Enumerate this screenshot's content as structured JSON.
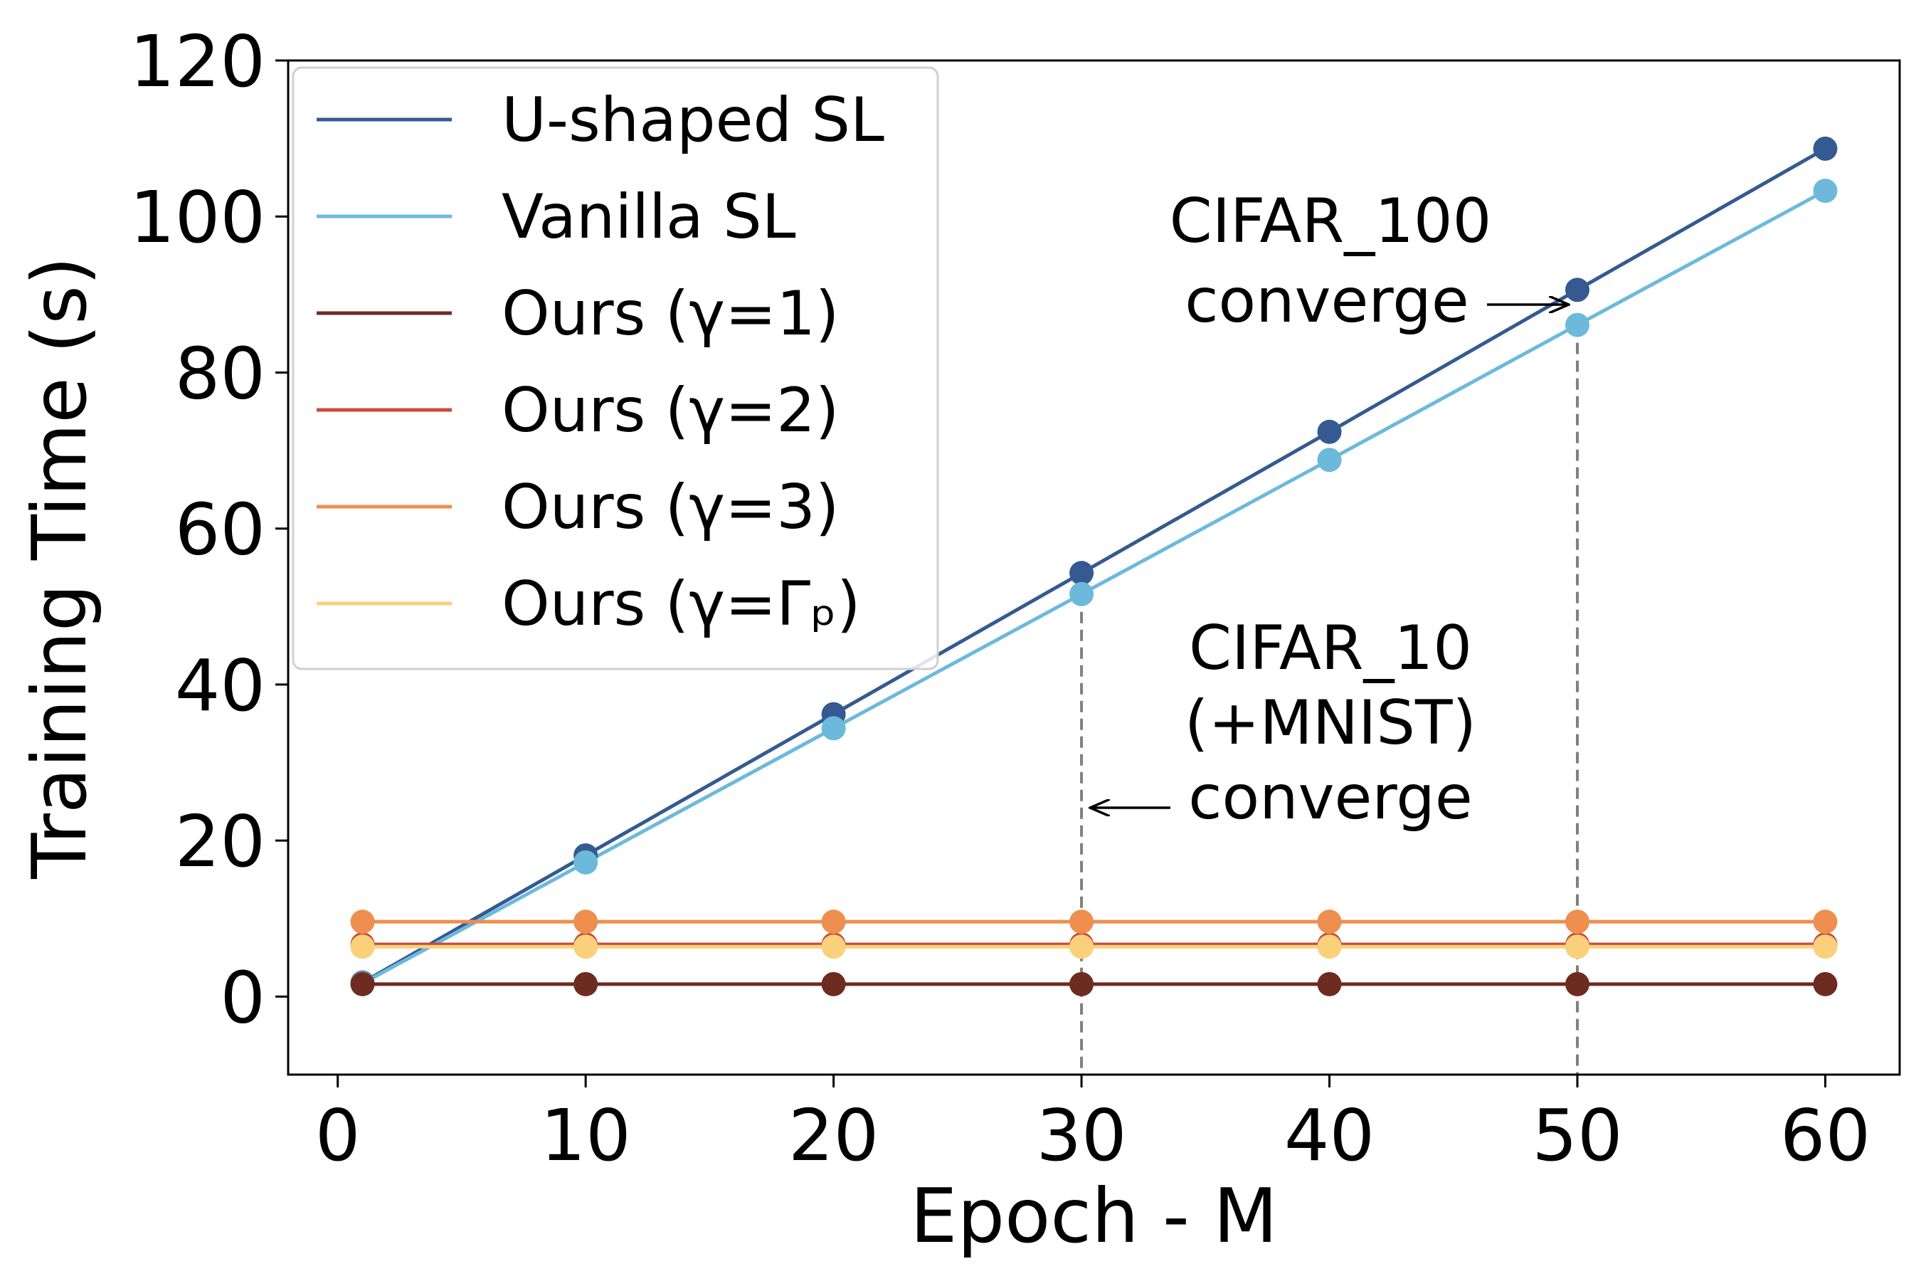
{
  "chart_data": {
    "type": "line",
    "xlabel": "Epoch - M",
    "ylabel": "Training Time (s)",
    "xlim": [
      -2,
      63
    ],
    "ylim": [
      -10,
      120
    ],
    "xticks": [
      0,
      10,
      20,
      30,
      40,
      50,
      60
    ],
    "yticks": [
      0,
      20,
      40,
      60,
      80,
      100,
      120
    ],
    "grid": false,
    "legend_position": "top-left",
    "x": [
      1,
      10,
      20,
      30,
      40,
      50,
      60
    ],
    "series": [
      {
        "name": "U-shaped SL",
        "color": "#345A91",
        "values": [
          1.8,
          18.1,
          36.2,
          54.3,
          72.4,
          90.6,
          108.7
        ]
      },
      {
        "name": "Vanilla SL",
        "color": "#6CB9DC",
        "values": [
          1.7,
          17.2,
          34.4,
          51.6,
          68.8,
          86.1,
          103.3
        ]
      },
      {
        "name": "Ours (γ=1)",
        "color": "#6E2B1F",
        "values": [
          1.6,
          1.6,
          1.6,
          1.6,
          1.6,
          1.6,
          1.6
        ]
      },
      {
        "name": "Ours (γ=2)",
        "color": "#C84B3D",
        "values": [
          6.7,
          6.7,
          6.7,
          6.7,
          6.7,
          6.7,
          6.7
        ]
      },
      {
        "name": "Ours (γ=3)",
        "color": "#EE8F4F",
        "values": [
          9.6,
          9.6,
          9.6,
          9.6,
          9.6,
          9.6,
          9.6
        ]
      },
      {
        "name": "Ours (γ=Γₚ)",
        "color": "#FAD17A",
        "values": [
          6.4,
          6.4,
          6.4,
          6.4,
          6.4,
          6.4,
          6.4
        ]
      }
    ],
    "annotations": [
      {
        "lines": [
          "CIFAR_100",
          "converge"
        ],
        "x": 50,
        "y": 90.6
      },
      {
        "lines": [
          "CIFAR_10",
          "(+MNIST)",
          "converge"
        ],
        "x": 30,
        "y": 51.6
      }
    ],
    "reference_lines": [
      {
        "x": 30,
        "y_top": 51.6,
        "style": "dashed",
        "color": "#808080"
      },
      {
        "x": 50,
        "y_top": 86.1,
        "style": "dashed",
        "color": "#808080"
      }
    ]
  }
}
